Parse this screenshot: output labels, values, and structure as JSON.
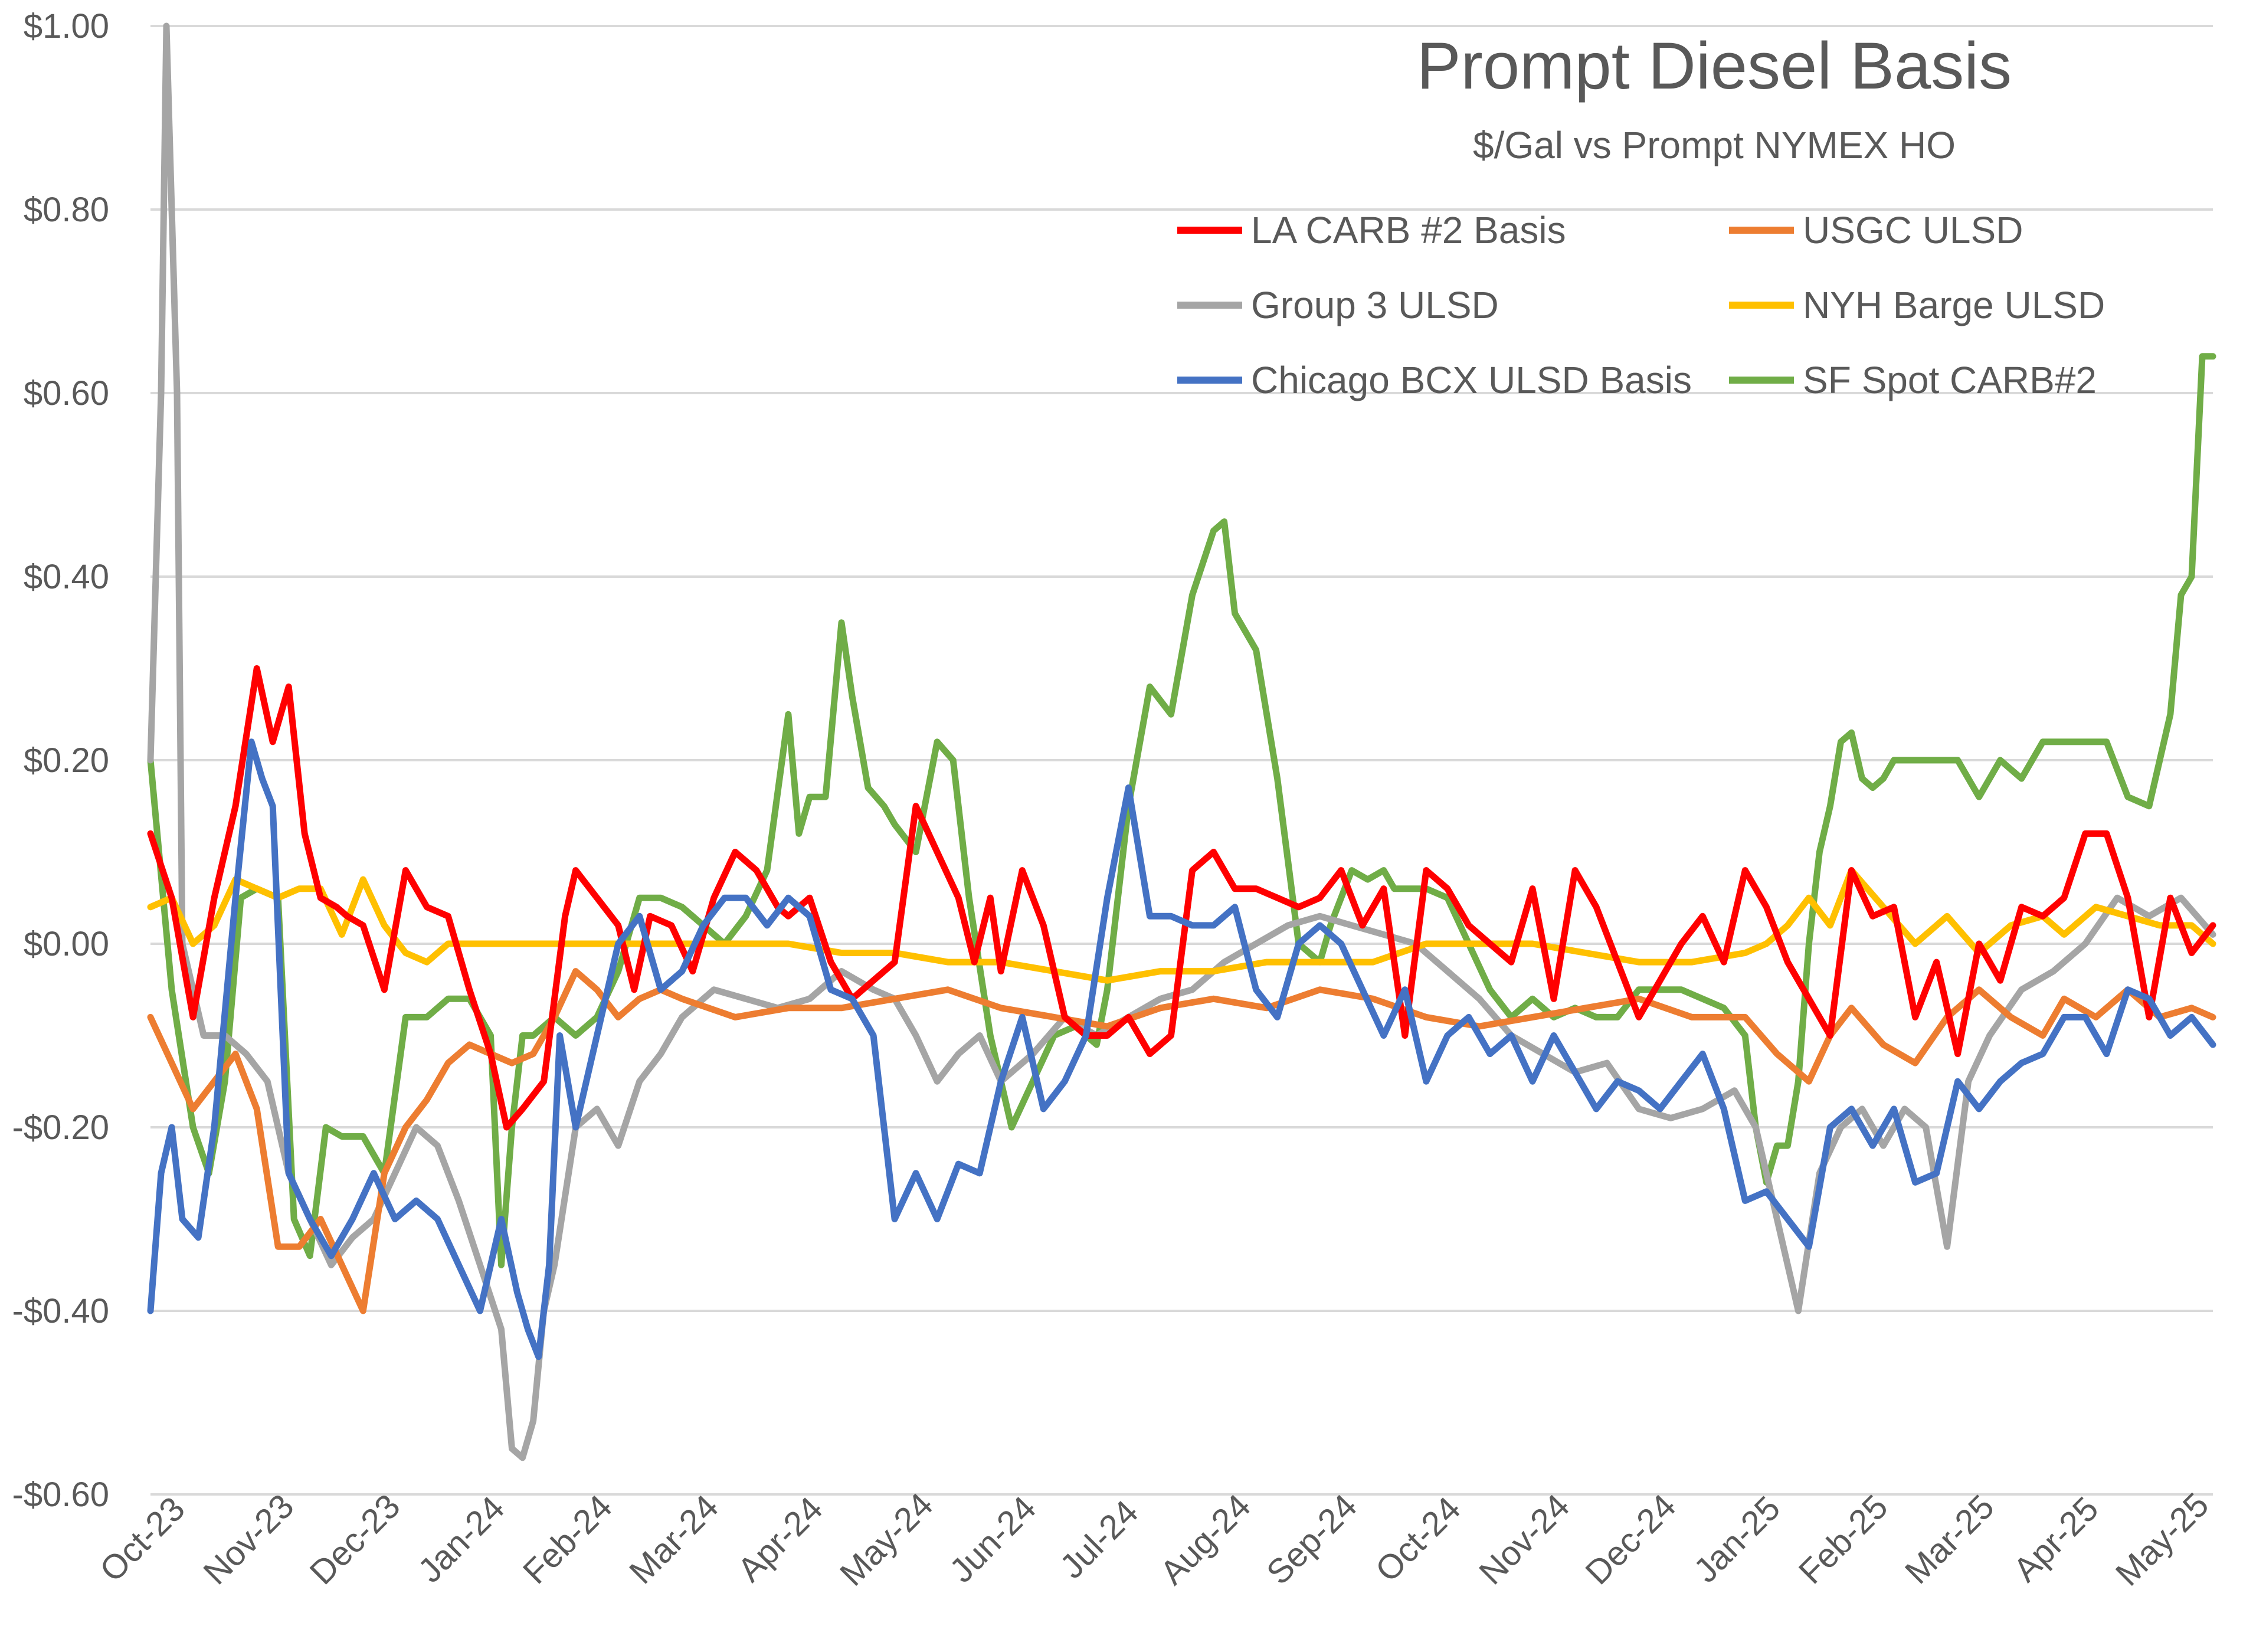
{
  "chart_data": {
    "type": "line",
    "title": "Prompt Diesel Basis",
    "subtitle": "$/Gal vs  Prompt NYMEX HO",
    "xlabel": "",
    "ylabel": "",
    "ylim": [
      -0.6,
      1.0
    ],
    "y_ticks": [
      1.0,
      0.8,
      0.6,
      0.4,
      0.2,
      0.0,
      -0.2,
      -0.4,
      -0.6
    ],
    "y_tick_labels": [
      "$1.00",
      "$0.80",
      "$0.60",
      "$0.40",
      "$0.20",
      "$0.00",
      "-$0.20",
      "-$0.40",
      "-$0.60"
    ],
    "x_tick_labels": [
      "Oct-23",
      "Nov-23",
      "Dec-23",
      "Jan-24",
      "Feb-24",
      "Mar-24",
      "Apr-24",
      "May-24",
      "Jun-24",
      "Jul-24",
      "Aug-24",
      "Sep-24",
      "Oct-24",
      "Nov-24",
      "Dec-24",
      "Jan-25",
      "Feb-25",
      "Mar-25",
      "Apr-25",
      "May-25"
    ],
    "x_range_months": [
      0,
      19.4
    ],
    "grid": "horizontal",
    "legend_position": "top-right",
    "series": [
      {
        "name": "LA CARB #2 Basis",
        "color": "#FF0000",
        "x": [
          0,
          0.2,
          0.4,
          0.6,
          0.8,
          1.0,
          1.15,
          1.3,
          1.45,
          1.6,
          1.75,
          1.85,
          2.0,
          2.2,
          2.4,
          2.6,
          2.8,
          3.0,
          3.2,
          3.35,
          3.5,
          3.7,
          3.9,
          4.0,
          4.2,
          4.4,
          4.55,
          4.7,
          4.9,
          5.1,
          5.3,
          5.5,
          5.7,
          5.9,
          6.0,
          6.2,
          6.4,
          6.5,
          6.6,
          6.8,
          7.0,
          7.2,
          7.4,
          7.6,
          7.75,
          7.9,
          8.0,
          8.2,
          8.4,
          8.6,
          8.8,
          9.0,
          9.2,
          9.4,
          9.6,
          9.8,
          10.0,
          10.2,
          10.4,
          10.6,
          10.8,
          11.0,
          11.2,
          11.4,
          11.6,
          11.8,
          12.0,
          12.2,
          12.4,
          12.6,
          12.8,
          13.0,
          13.2,
          13.4,
          13.6,
          13.8,
          14.0,
          14.2,
          14.4,
          14.6,
          14.8,
          15.0,
          15.2,
          15.4,
          15.6,
          15.8,
          16.0,
          16.2,
          16.4,
          16.6,
          16.8,
          17.0,
          17.2,
          17.4,
          17.6,
          17.8,
          18.0,
          18.2,
          18.4,
          18.6,
          18.8,
          19.0,
          19.2,
          19.4
        ],
        "values": [
          0.12,
          0.05,
          -0.08,
          0.05,
          0.15,
          0.3,
          0.22,
          0.28,
          0.12,
          0.05,
          0.04,
          0.03,
          0.02,
          -0.05,
          0.08,
          0.04,
          0.03,
          -0.05,
          -0.12,
          -0.2,
          -0.18,
          -0.15,
          0.03,
          0.08,
          0.05,
          0.02,
          -0.05,
          0.03,
          0.02,
          -0.03,
          0.05,
          0.1,
          0.08,
          0.04,
          0.03,
          0.05,
          -0.02,
          -0.04,
          -0.06,
          -0.04,
          -0.02,
          0.15,
          0.1,
          0.05,
          -0.02,
          0.05,
          -0.03,
          0.08,
          0.02,
          -0.08,
          -0.1,
          -0.1,
          -0.08,
          -0.12,
          -0.1,
          0.08,
          0.1,
          0.06,
          0.06,
          0.05,
          0.04,
          0.05,
          0.08,
          0.02,
          0.06,
          -0.1,
          0.08,
          0.06,
          0.02,
          0.0,
          -0.02,
          0.06,
          -0.06,
          0.08,
          0.04,
          -0.02,
          -0.08,
          -0.04,
          0.0,
          0.03,
          -0.02,
          0.08,
          0.04,
          -0.02,
          -0.06,
          -0.1,
          0.08,
          0.03,
          0.04,
          -0.08,
          -0.02,
          -0.12,
          0.0,
          -0.04,
          0.04,
          0.03,
          0.05,
          0.12,
          0.12,
          0.05,
          -0.08,
          0.05,
          -0.01,
          0.02
        ]
      },
      {
        "name": "USGC ULSD",
        "color": "#ED7D31",
        "x": [
          0,
          0.2,
          0.4,
          0.6,
          0.8,
          1.0,
          1.2,
          1.4,
          1.6,
          1.8,
          2.0,
          2.2,
          2.4,
          2.6,
          2.8,
          3.0,
          3.2,
          3.4,
          3.6,
          3.8,
          4.0,
          4.2,
          4.4,
          4.6,
          4.8,
          5.0,
          5.5,
          6.0,
          6.5,
          7.0,
          7.5,
          8.0,
          8.5,
          9.0,
          9.5,
          10.0,
          10.5,
          11.0,
          11.5,
          12.0,
          12.5,
          13.0,
          13.5,
          14.0,
          14.5,
          15.0,
          15.3,
          15.6,
          15.8,
          16.0,
          16.3,
          16.6,
          16.9,
          17.2,
          17.5,
          17.8,
          18.0,
          18.3,
          18.6,
          18.9,
          19.2,
          19.4
        ],
        "values": [
          -0.08,
          -0.13,
          -0.18,
          -0.15,
          -0.12,
          -0.18,
          -0.33,
          -0.33,
          -0.3,
          -0.35,
          -0.4,
          -0.25,
          -0.2,
          -0.17,
          -0.13,
          -0.11,
          -0.12,
          -0.13,
          -0.12,
          -0.08,
          -0.03,
          -0.05,
          -0.08,
          -0.06,
          -0.05,
          -0.06,
          -0.08,
          -0.07,
          -0.07,
          -0.06,
          -0.05,
          -0.07,
          -0.08,
          -0.09,
          -0.07,
          -0.06,
          -0.07,
          -0.05,
          -0.06,
          -0.08,
          -0.09,
          -0.08,
          -0.07,
          -0.06,
          -0.08,
          -0.08,
          -0.12,
          -0.15,
          -0.1,
          -0.07,
          -0.11,
          -0.13,
          -0.08,
          -0.05,
          -0.08,
          -0.1,
          -0.06,
          -0.08,
          -0.05,
          -0.08,
          -0.07,
          -0.08
        ]
      },
      {
        "name": "Group 3 ULSD",
        "color": "#A5A5A5",
        "x": [
          0,
          0.1,
          0.15,
          0.25,
          0.3,
          0.4,
          0.5,
          0.7,
          0.9,
          1.1,
          1.3,
          1.5,
          1.7,
          1.9,
          2.1,
          2.3,
          2.5,
          2.7,
          2.9,
          3.1,
          3.3,
          3.4,
          3.5,
          3.6,
          3.7,
          3.8,
          4.0,
          4.2,
          4.4,
          4.6,
          4.8,
          5.0,
          5.3,
          5.6,
          5.9,
          6.2,
          6.5,
          6.8,
          7.0,
          7.2,
          7.4,
          7.6,
          7.8,
          8.0,
          8.3,
          8.6,
          8.9,
          9.2,
          9.5,
          9.8,
          10.1,
          10.4,
          10.7,
          11.0,
          11.3,
          11.6,
          11.9,
          12.2,
          12.5,
          12.8,
          13.1,
          13.4,
          13.7,
          14.0,
          14.3,
          14.6,
          14.9,
          15.1,
          15.3,
          15.5,
          15.7,
          15.9,
          16.1,
          16.3,
          16.5,
          16.7,
          16.9,
          17.1,
          17.3,
          17.6,
          17.9,
          18.2,
          18.5,
          18.8,
          19.1,
          19.4
        ],
        "values": [
          0.2,
          0.6,
          1.0,
          0.6,
          0.0,
          -0.05,
          -0.1,
          -0.1,
          -0.12,
          -0.15,
          -0.25,
          -0.3,
          -0.35,
          -0.32,
          -0.3,
          -0.25,
          -0.2,
          -0.22,
          -0.28,
          -0.35,
          -0.42,
          -0.55,
          -0.56,
          -0.52,
          -0.4,
          -0.35,
          -0.2,
          -0.18,
          -0.22,
          -0.15,
          -0.12,
          -0.08,
          -0.05,
          -0.06,
          -0.07,
          -0.06,
          -0.03,
          -0.05,
          -0.06,
          -0.1,
          -0.15,
          -0.12,
          -0.1,
          -0.15,
          -0.12,
          -0.08,
          -0.1,
          -0.08,
          -0.06,
          -0.05,
          -0.02,
          0.0,
          0.02,
          0.03,
          0.02,
          0.01,
          0.0,
          -0.03,
          -0.06,
          -0.1,
          -0.12,
          -0.14,
          -0.13,
          -0.18,
          -0.19,
          -0.18,
          -0.16,
          -0.2,
          -0.3,
          -0.4,
          -0.25,
          -0.2,
          -0.18,
          -0.22,
          -0.18,
          -0.2,
          -0.33,
          -0.15,
          -0.1,
          -0.05,
          -0.03,
          0.0,
          0.05,
          0.03,
          0.05,
          0.01
        ]
      },
      {
        "name": "NYH Barge ULSD",
        "color": "#FFC000",
        "x": [
          0,
          0.2,
          0.4,
          0.6,
          0.8,
          1.0,
          1.2,
          1.4,
          1.6,
          1.8,
          2.0,
          2.2,
          2.4,
          2.6,
          2.8,
          3.0,
          3.5,
          4.0,
          4.5,
          5.0,
          5.5,
          6.0,
          6.5,
          7.0,
          7.5,
          8.0,
          8.5,
          9.0,
          9.5,
          10.0,
          10.5,
          11.0,
          11.5,
          12.0,
          12.5,
          13.0,
          13.5,
          14.0,
          14.5,
          15.0,
          15.2,
          15.4,
          15.6,
          15.8,
          16.0,
          16.3,
          16.6,
          16.9,
          17.2,
          17.5,
          17.8,
          18.0,
          18.3,
          18.6,
          18.9,
          19.2,
          19.4
        ],
        "values": [
          0.04,
          0.05,
          0.0,
          0.02,
          0.07,
          0.06,
          0.05,
          0.06,
          0.06,
          0.01,
          0.07,
          0.02,
          -0.01,
          -0.02,
          0.0,
          0.0,
          0.0,
          0.0,
          0.0,
          0.0,
          0.0,
          0.0,
          -0.01,
          -0.01,
          -0.02,
          -0.02,
          -0.03,
          -0.04,
          -0.03,
          -0.03,
          -0.02,
          -0.02,
          -0.02,
          0.0,
          0.0,
          0.0,
          -0.01,
          -0.02,
          -0.02,
          -0.01,
          0.0,
          0.02,
          0.05,
          0.02,
          0.08,
          0.04,
          0.0,
          0.03,
          -0.01,
          0.02,
          0.03,
          0.01,
          0.04,
          0.03,
          0.02,
          0.02,
          0.0
        ]
      },
      {
        "name": "Chicago BCX ULSD Basis",
        "color": "#4472C4",
        "x": [
          0,
          0.1,
          0.2,
          0.3,
          0.45,
          0.6,
          0.8,
          0.95,
          1.05,
          1.15,
          1.3,
          1.5,
          1.7,
          1.9,
          2.1,
          2.3,
          2.5,
          2.7,
          2.9,
          3.1,
          3.3,
          3.45,
          3.55,
          3.65,
          3.75,
          3.85,
          4.0,
          4.2,
          4.4,
          4.6,
          4.8,
          5.0,
          5.2,
          5.4,
          5.6,
          5.8,
          6.0,
          6.2,
          6.4,
          6.6,
          6.8,
          7.0,
          7.2,
          7.4,
          7.6,
          7.8,
          8.0,
          8.2,
          8.4,
          8.6,
          8.8,
          9.0,
          9.2,
          9.4,
          9.6,
          9.8,
          10.0,
          10.2,
          10.4,
          10.6,
          10.8,
          11.0,
          11.2,
          11.4,
          11.6,
          11.8,
          12.0,
          12.2,
          12.4,
          12.6,
          12.8,
          13.0,
          13.2,
          13.4,
          13.6,
          13.8,
          14.0,
          14.2,
          14.4,
          14.6,
          14.8,
          15.0,
          15.2,
          15.4,
          15.6,
          15.8,
          16.0,
          16.2,
          16.4,
          16.6,
          16.8,
          17.0,
          17.2,
          17.4,
          17.6,
          17.8,
          18.0,
          18.2,
          18.4,
          18.6,
          18.8,
          19.0,
          19.2,
          19.4
        ],
        "values": [
          -0.4,
          -0.25,
          -0.2,
          -0.3,
          -0.32,
          -0.2,
          0.05,
          0.22,
          0.18,
          0.15,
          -0.25,
          -0.3,
          -0.34,
          -0.3,
          -0.25,
          -0.3,
          -0.28,
          -0.3,
          -0.35,
          -0.4,
          -0.3,
          -0.38,
          -0.42,
          -0.45,
          -0.35,
          -0.1,
          -0.2,
          -0.1,
          0.0,
          0.03,
          -0.05,
          -0.03,
          0.02,
          0.05,
          0.05,
          0.02,
          0.05,
          0.03,
          -0.05,
          -0.06,
          -0.1,
          -0.3,
          -0.25,
          -0.3,
          -0.24,
          -0.25,
          -0.15,
          -0.08,
          -0.18,
          -0.15,
          -0.1,
          0.05,
          0.17,
          0.03,
          0.03,
          0.02,
          0.02,
          0.04,
          -0.05,
          -0.08,
          0.0,
          0.02,
          0.0,
          -0.05,
          -0.1,
          -0.05,
          -0.15,
          -0.1,
          -0.08,
          -0.12,
          -0.1,
          -0.15,
          -0.1,
          -0.14,
          -0.18,
          -0.15,
          -0.16,
          -0.18,
          -0.15,
          -0.12,
          -0.18,
          -0.28,
          -0.27,
          -0.3,
          -0.33,
          -0.2,
          -0.18,
          -0.22,
          -0.18,
          -0.26,
          -0.25,
          -0.15,
          -0.18,
          -0.15,
          -0.13,
          -0.12,
          -0.08,
          -0.08,
          -0.12,
          -0.05,
          -0.06,
          -0.1,
          -0.08,
          -0.11
        ]
      },
      {
        "name": "SF Spot CARB#2",
        "color": "#70AD47",
        "x": [
          0,
          0.2,
          0.4,
          0.55,
          0.7,
          0.85,
          1.0,
          1.2,
          1.35,
          1.5,
          1.65,
          1.8,
          2.0,
          2.2,
          2.4,
          2.6,
          2.8,
          3.0,
          3.2,
          3.3,
          3.4,
          3.5,
          3.6,
          3.8,
          4.0,
          4.2,
          4.4,
          4.6,
          4.8,
          5.0,
          5.2,
          5.4,
          5.6,
          5.8,
          6.0,
          6.1,
          6.2,
          6.35,
          6.5,
          6.6,
          6.75,
          6.9,
          7.0,
          7.2,
          7.4,
          7.55,
          7.7,
          7.9,
          8.1,
          8.3,
          8.5,
          8.7,
          8.9,
          9.0,
          9.2,
          9.4,
          9.6,
          9.8,
          10.0,
          10.1,
          10.2,
          10.4,
          10.6,
          10.8,
          11.0,
          11.1,
          11.2,
          11.3,
          11.45,
          11.6,
          11.7,
          11.8,
          11.9,
          12.0,
          12.2,
          12.4,
          12.6,
          12.8,
          13.0,
          13.2,
          13.4,
          13.6,
          13.8,
          14.0,
          14.4,
          14.8,
          15.0,
          15.1,
          15.2,
          15.3,
          15.4,
          15.5,
          15.6,
          15.7,
          15.8,
          15.9,
          16.0,
          16.1,
          16.2,
          16.3,
          16.4,
          16.6,
          16.8,
          17.0,
          17.2,
          17.4,
          17.6,
          17.8,
          18.0,
          18.2,
          18.4,
          18.6,
          18.8,
          18.9,
          19.0,
          19.1,
          19.2,
          19.3,
          19.4
        ],
        "values": [
          0.2,
          -0.05,
          -0.2,
          -0.25,
          -0.15,
          0.05,
          0.06,
          0.05,
          -0.3,
          -0.34,
          -0.2,
          -0.21,
          -0.21,
          -0.25,
          -0.08,
          -0.08,
          -0.06,
          -0.06,
          -0.1,
          -0.35,
          -0.2,
          -0.1,
          -0.1,
          -0.08,
          -0.1,
          -0.08,
          -0.03,
          0.05,
          0.05,
          0.04,
          0.02,
          0.0,
          0.03,
          0.08,
          0.25,
          0.12,
          0.16,
          0.16,
          0.35,
          0.27,
          0.17,
          0.15,
          0.13,
          0.1,
          0.22,
          0.2,
          0.05,
          -0.1,
          -0.2,
          -0.15,
          -0.1,
          -0.09,
          -0.11,
          -0.05,
          0.15,
          0.28,
          0.25,
          0.38,
          0.45,
          0.46,
          0.36,
          0.32,
          0.18,
          0.0,
          -0.02,
          0.02,
          0.05,
          0.08,
          0.07,
          0.08,
          0.06,
          0.06,
          0.06,
          0.06,
          0.05,
          0.0,
          -0.05,
          -0.08,
          -0.06,
          -0.08,
          -0.07,
          -0.08,
          -0.08,
          -0.05,
          -0.05,
          -0.07,
          -0.1,
          -0.2,
          -0.26,
          -0.22,
          -0.22,
          -0.15,
          0.0,
          0.1,
          0.15,
          0.22,
          0.23,
          0.18,
          0.17,
          0.18,
          0.2,
          0.2,
          0.2,
          0.2,
          0.16,
          0.2,
          0.18,
          0.22,
          0.22,
          0.22,
          0.22,
          0.16,
          0.15,
          0.2,
          0.25,
          0.38,
          0.4,
          0.64,
          0.64
        ]
      }
    ]
  }
}
